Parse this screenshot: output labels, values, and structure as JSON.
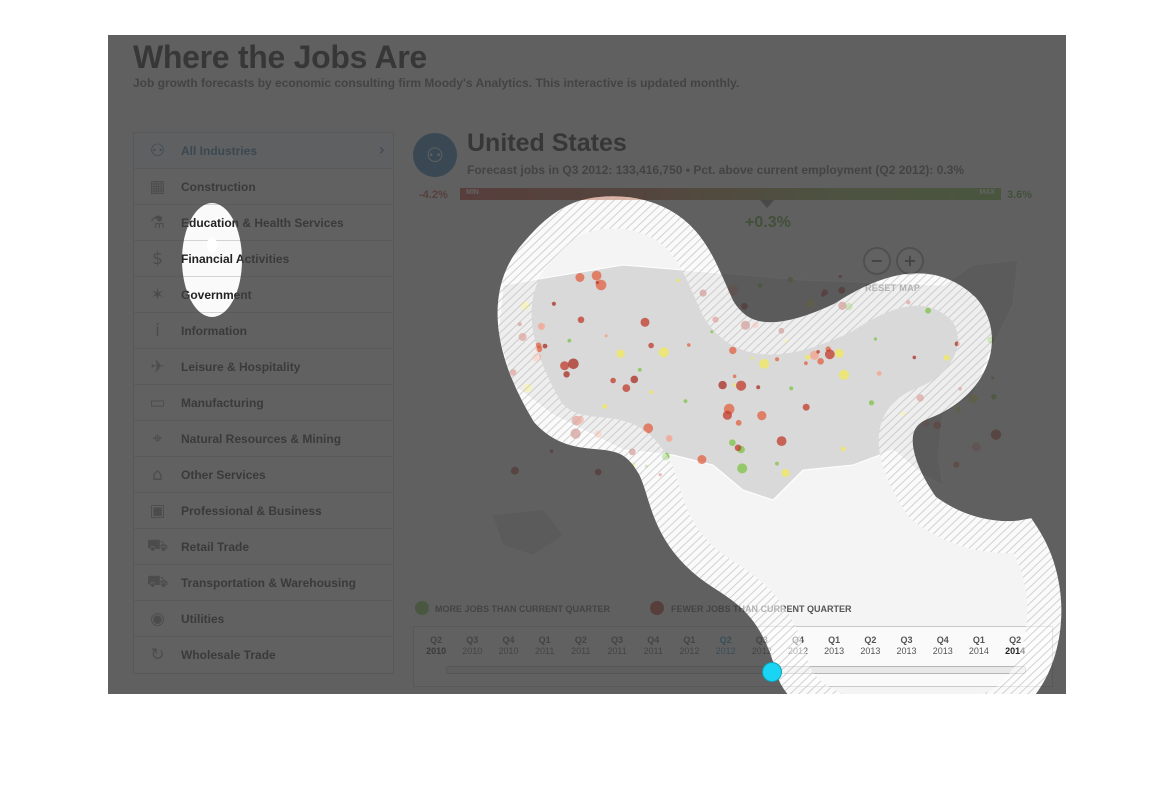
{
  "header": {
    "title": "Where the Jobs Are",
    "subtitle": "Job growth forecasts by economic consulting firm Moody's Analytics. This interactive is updated monthly."
  },
  "sidebar": {
    "items": [
      {
        "label": "All Industries",
        "icon": "people-icon",
        "active": true
      },
      {
        "label": "Construction",
        "icon": "barrier-icon"
      },
      {
        "label": "Education & Health Services",
        "icon": "flask-icon"
      },
      {
        "label": "Financial Activities",
        "icon": "dollar-icon"
      },
      {
        "label": "Government",
        "icon": "badge-icon"
      },
      {
        "label": "Information",
        "icon": "info-icon"
      },
      {
        "label": "Leisure & Hospitality",
        "icon": "plane-icon"
      },
      {
        "label": "Manufacturing",
        "icon": "car-icon"
      },
      {
        "label": "Natural Resources & Mining",
        "icon": "target-icon"
      },
      {
        "label": "Other Services",
        "icon": "house-icon"
      },
      {
        "label": "Professional & Business",
        "icon": "briefcase-icon"
      },
      {
        "label": "Retail Trade",
        "icon": "cart-icon"
      },
      {
        "label": "Transportation & Warehousing",
        "icon": "truck-icon"
      },
      {
        "label": "Utilities",
        "icon": "lightbulb-icon"
      },
      {
        "label": "Wholesale Trade",
        "icon": "recycle-icon"
      }
    ]
  },
  "region": {
    "name": "United States",
    "stat": "Forecast jobs in Q3 2012: 133,416,750 • Pct. above current employment (Q2 2012): 0.3%"
  },
  "scale": {
    "min_value": "-4.2%",
    "max_value": "3.6%",
    "min_label": "MIN",
    "max_label": "MAX",
    "current": "+0.3%",
    "current_numeric": 0.3,
    "min_numeric": -4.2,
    "max_numeric": 3.6
  },
  "map_controls": {
    "zoom_out": "−",
    "zoom_in": "+",
    "reset": "RESET MAP"
  },
  "legend": {
    "more": "MORE JOBS THAN CURRENT QUARTER",
    "fewer": "FEWER JOBS THAN CURRENT QUARTER",
    "more_color": "#7cc243",
    "fewer_color": "#c0392b"
  },
  "timeline": {
    "items": [
      {
        "q": "Q2",
        "y": "2010",
        "endpoint": true
      },
      {
        "q": "Q3",
        "y": "2010"
      },
      {
        "q": "Q4",
        "y": "2010"
      },
      {
        "q": "Q1",
        "y": "2011"
      },
      {
        "q": "Q2",
        "y": "2011"
      },
      {
        "q": "Q3",
        "y": "2011"
      },
      {
        "q": "Q4",
        "y": "2011"
      },
      {
        "q": "Q1",
        "y": "2012"
      },
      {
        "q": "Q2",
        "y": "2012",
        "selected": true
      },
      {
        "q": "Q3",
        "y": "2012"
      },
      {
        "q": "Q4",
        "y": "2012"
      },
      {
        "q": "Q1",
        "y": "2013"
      },
      {
        "q": "Q2",
        "y": "2013"
      },
      {
        "q": "Q3",
        "y": "2013"
      },
      {
        "q": "Q4",
        "y": "2013"
      },
      {
        "q": "Q1",
        "y": "2014"
      },
      {
        "q": "Q2",
        "y": "2014",
        "endpoint": true
      }
    ]
  },
  "colors": {
    "accent": "#1d6fa8",
    "positive": "#4a9b25",
    "negative": "#c0392b"
  }
}
